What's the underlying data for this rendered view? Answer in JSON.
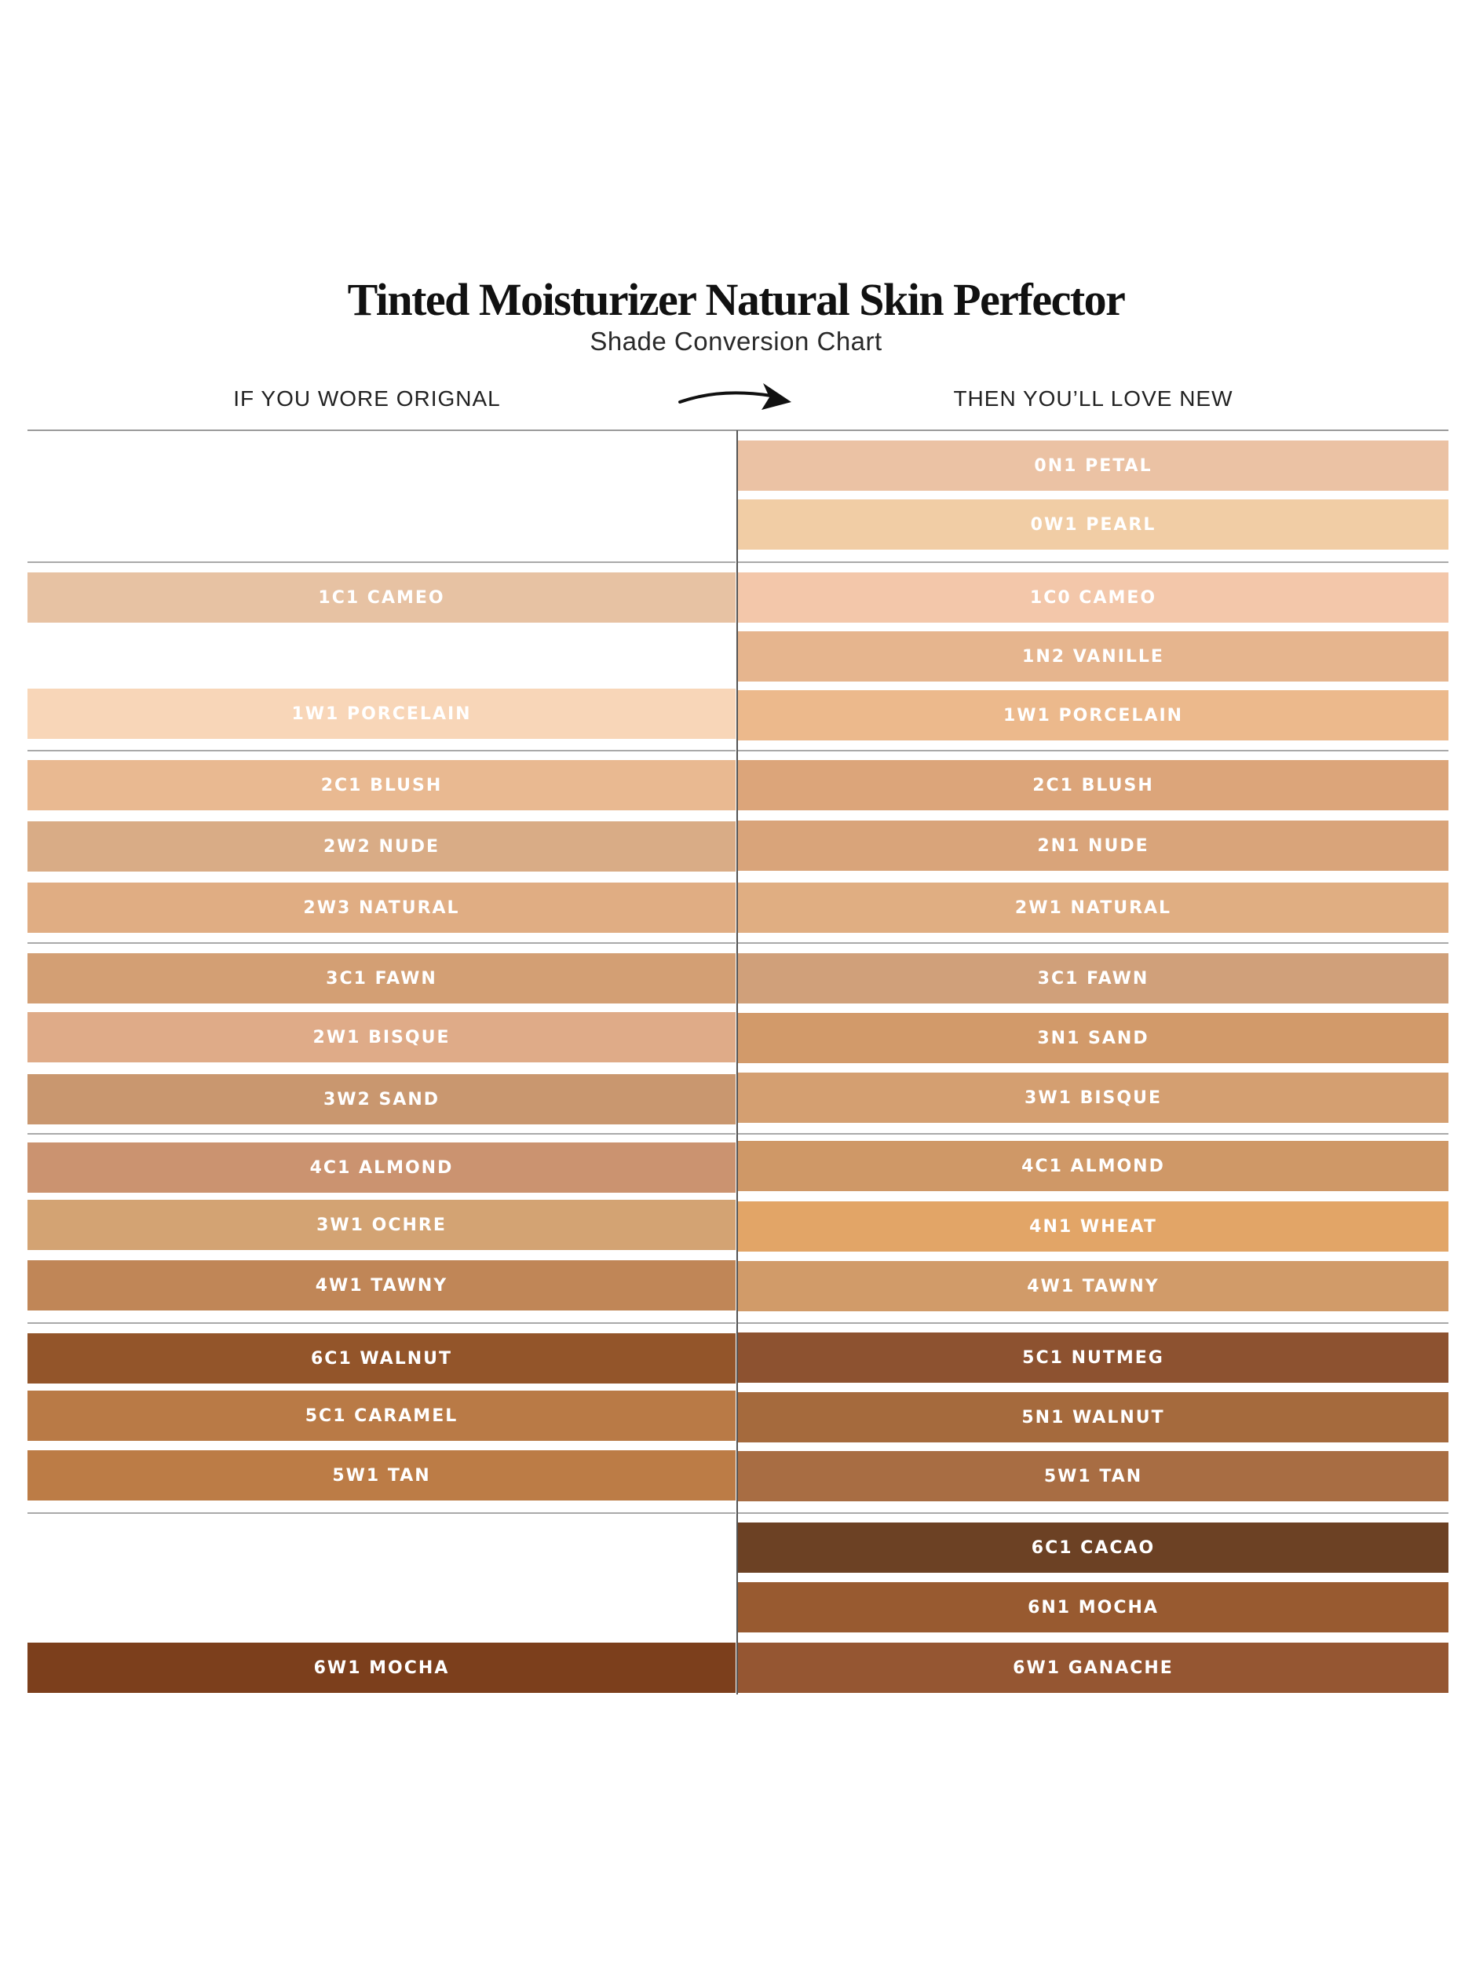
{
  "header": {
    "title": "Tinted Moisturizer Natural Skin Perfector",
    "subtitle": "Shade Conversion Chart",
    "left_heading": "IF YOU WORE ORIGNAL",
    "right_heading": "THEN YOU’LL LOVE NEW",
    "arrow_icon": "curved-arrow-right-icon"
  },
  "original_shades": [
    {
      "label": "1C1 CAMEO",
      "color": "#e7c2a3"
    },
    {
      "label": "1W1 PORCELAIN",
      "color": "#f8d6b8"
    },
    {
      "label": "2C1 BLUSH",
      "color": "#e9b991"
    },
    {
      "label": "2W2 NUDE",
      "color": "#d9ac86"
    },
    {
      "label": "2W3 NATURAL",
      "color": "#e0ad83"
    },
    {
      "label": "3C1 FAWN",
      "color": "#d39f74"
    },
    {
      "label": "2W1 BISQUE",
      "color": "#dfab88"
    },
    {
      "label": "3W2 SAND",
      "color": "#c9976f"
    },
    {
      "label": "4C1 ALMOND",
      "color": "#cb9370"
    },
    {
      "label": "3W1 OCHRE",
      "color": "#d3a373"
    },
    {
      "label": "4W1 TAWNY",
      "color": "#c08657"
    },
    {
      "label": "6C1 WALNUT",
      "color": "#93552a"
    },
    {
      "label": "5C1 CARAMEL",
      "color": "#b97a46"
    },
    {
      "label": "5W1 TAN",
      "color": "#bc7c46"
    },
    {
      "label": "6W1 MOCHA",
      "color": "#7c3f1c"
    }
  ],
  "new_shades": [
    {
      "label": "0N1 PETAL",
      "color": "#ebc2a4"
    },
    {
      "label": "0W1 PEARL",
      "color": "#f1cda5"
    },
    {
      "label": "1C0 CAMEO",
      "color": "#f3c7aa"
    },
    {
      "label": "1N2 VANILLE",
      "color": "#e6b58e"
    },
    {
      "label": "1W1 PORCELAIN",
      "color": "#ecb98c"
    },
    {
      "label": "2C1 BLUSH",
      "color": "#dca57a"
    },
    {
      "label": "2N1 NUDE",
      "color": "#d9a47a"
    },
    {
      "label": "2W1 NATURAL",
      "color": "#e0ae82"
    },
    {
      "label": "3C1 FAWN",
      "color": "#d0a07a"
    },
    {
      "label": "3N1 SAND",
      "color": "#d29a6a"
    },
    {
      "label": "3W1 BISQUE",
      "color": "#d49f71"
    },
    {
      "label": "4C1 ALMOND",
      "color": "#cf9867"
    },
    {
      "label": "4N1 WHEAT",
      "color": "#e2a567"
    },
    {
      "label": "4W1 TAWNY",
      "color": "#d19b69"
    },
    {
      "label": "5C1 NUTMEG",
      "color": "#8d5230"
    },
    {
      "label": "5N1 WALNUT",
      "color": "#a56a3d"
    },
    {
      "label": "5W1 TAN",
      "color": "#a86d43"
    },
    {
      "label": "6C1 CACAO",
      "color": "#6c4124"
    },
    {
      "label": "6N1 MOCHA",
      "color": "#985a30"
    },
    {
      "label": "6W1 GANACHE",
      "color": "#955632"
    }
  ]
}
